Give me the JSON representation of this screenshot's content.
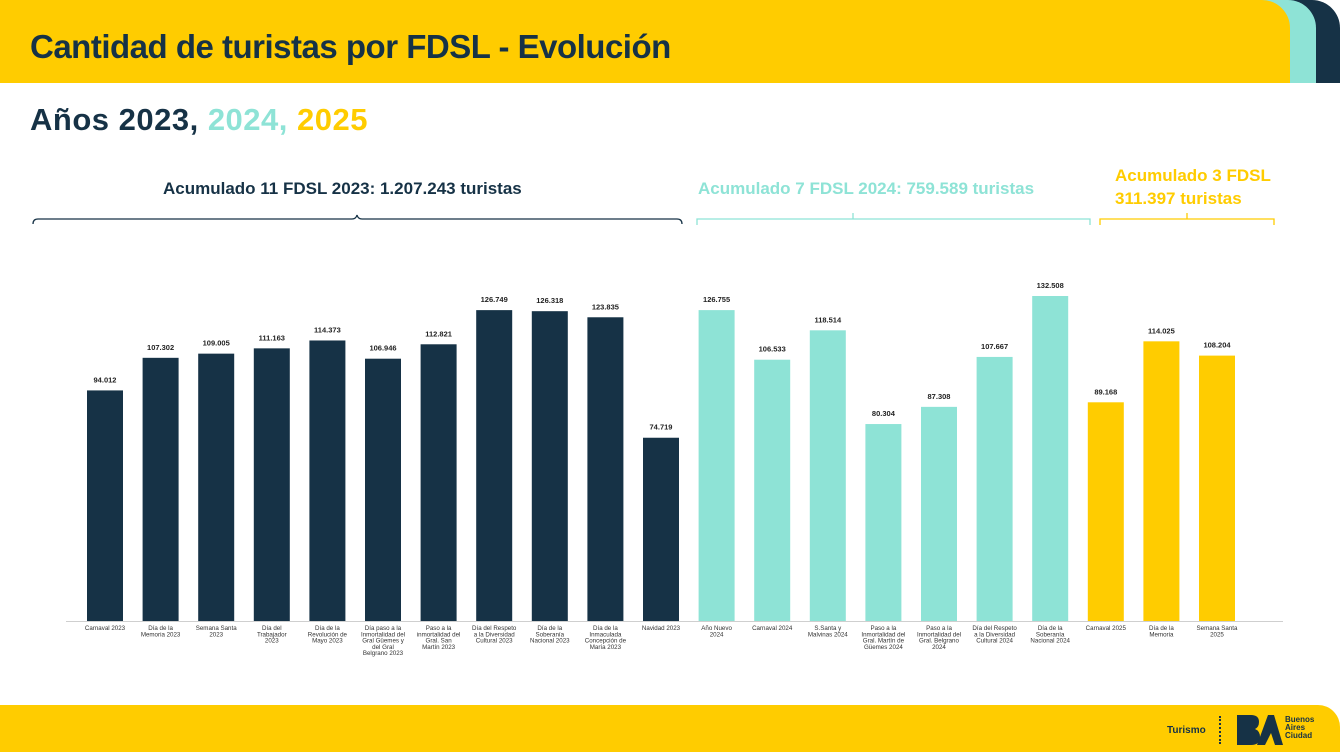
{
  "header": {
    "title": "Cantidad de turistas por FDSL - Evolución"
  },
  "subtitle": {
    "prefix": "Años 2023,",
    "year2024": " 2024,",
    "year2025": " 2025"
  },
  "colors": {
    "y2023": "#163246",
    "y2024": "#8ee3d6",
    "y2025": "#ffcc00"
  },
  "brackets": {
    "b2023": "Acumulado 11 FDSL 2023: 1.207.243 turistas",
    "b2024": "Acumulado 7 FDSL 2024: 759.589 turistas",
    "b2025_line1": "Acumulado 3 FDSL",
    "b2025_line2": "311.397 turistas"
  },
  "footer": {
    "section": "Turismo",
    "logo_text": [
      "Buenos",
      "Aires",
      "Ciudad"
    ]
  },
  "chart_data": {
    "type": "bar",
    "title": "Cantidad de turistas por FDSL - Evolución",
    "xlabel": "",
    "ylabel": "",
    "ylim": [
      0,
      132508
    ],
    "grid": false,
    "legend": "none",
    "series": [
      {
        "name": "2023",
        "color": "#163246",
        "categories": [
          [
            "Carnaval 2023"
          ],
          [
            "Día de la",
            "Memoria 2023"
          ],
          [
            "Semana Santa",
            "2023"
          ],
          [
            "Día del",
            "Trabajador",
            "2023"
          ],
          [
            "Día de la",
            "Revolución de",
            "Mayo 2023"
          ],
          [
            "Día paso a la",
            "Inmortalidad del",
            "Gral Güemes y",
            "del Gral",
            "Belgrano 2023"
          ],
          [
            "Paso a la",
            "inmortalidad del",
            "Gral. San",
            "Martín 2023"
          ],
          [
            "Día del Respeto",
            "a la Diversidad",
            "Cultural 2023"
          ],
          [
            "Día de la",
            "Soberanía",
            "Nacional 2023"
          ],
          [
            "Día de la",
            "Inmaculada",
            "Concepción de",
            "María 2023"
          ],
          [
            "Navidad 2023"
          ]
        ],
        "values": [
          94012,
          107302,
          109005,
          111163,
          114373,
          106946,
          112821,
          126749,
          126318,
          123835,
          74719
        ],
        "labels": [
          "94.012",
          "107.302",
          "109.005",
          "111.163",
          "114.373",
          "106.946",
          "112.821",
          "126.749",
          "126.318",
          "123.835",
          "74.719"
        ]
      },
      {
        "name": "2024",
        "color": "#8ee3d6",
        "categories": [
          [
            "Año Nuevo",
            "2024"
          ],
          [
            "Carnaval 2024"
          ],
          [
            "S.Santa y",
            "Malvinas 2024"
          ],
          [
            "Paso a la",
            "Inmortalidad del",
            "Gral. Martín de",
            "Güemes 2024"
          ],
          [
            "Paso a la",
            "Inmortalidad del",
            "Gral. Belgrano",
            "2024"
          ],
          [
            "Día del Respeto",
            "a la Diversidad",
            "Cultural 2024"
          ],
          [
            "Día de la",
            "Soberanía",
            "Nacional 2024"
          ]
        ],
        "values": [
          126755,
          106533,
          118514,
          80304,
          87308,
          107667,
          132508
        ],
        "labels": [
          "126.755",
          "106.533",
          "118.514",
          "80.304",
          "87.308",
          "107.667",
          "132.508"
        ]
      },
      {
        "name": "2025",
        "color": "#ffcc00",
        "categories": [
          [
            "Carnaval 2025"
          ],
          [
            "Día de la",
            "Memoria"
          ],
          [
            "Semana Santa",
            "2025"
          ]
        ],
        "values": [
          89168,
          114025,
          108204
        ],
        "labels": [
          "89.168",
          "114.025",
          "108.204"
        ]
      }
    ]
  }
}
